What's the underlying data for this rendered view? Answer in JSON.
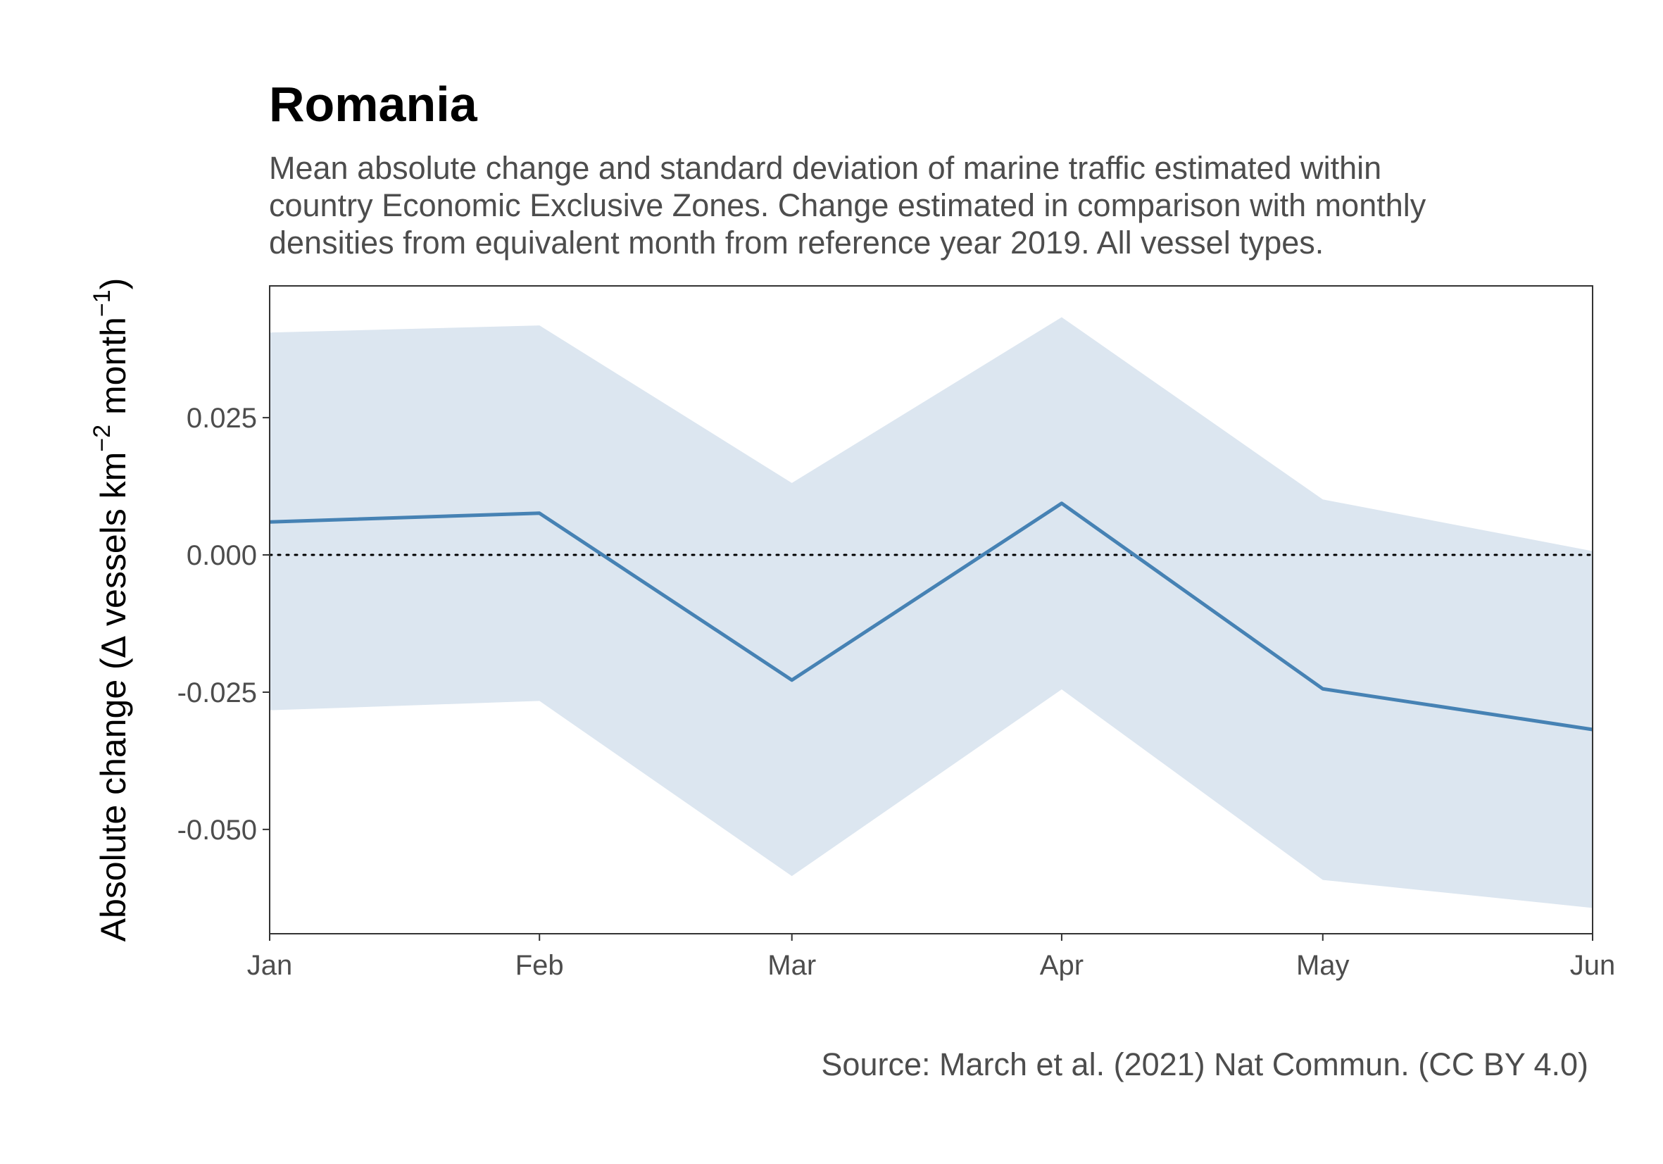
{
  "chart_data": {
    "type": "area",
    "title": "Romania",
    "subtitle": [
      "Mean absolute change and standard deviation of marine traffic estimated within",
      "country Economic Exclusive Zones. Change estimated in comparison with monthly",
      "densities from equivalent month from reference year 2019. All vessel types."
    ],
    "caption": "Source: March et al. (2021) Nat Commun. (CC BY 4.0)",
    "ylabel": {
      "prefix": "Absolute change (",
      "delta": "Δ",
      "text1": " vessels km",
      "sup1": "−2",
      "text2": " month",
      "sup2": "−1",
      "suffix": ")"
    },
    "x": [
      "Jan",
      "Feb",
      "Mar",
      "Apr",
      "May",
      "Jun"
    ],
    "x_days": [
      1,
      32,
      61,
      92,
      122,
      153
    ],
    "xlim_days": [
      1,
      153
    ],
    "ylim": [
      -0.069,
      0.049
    ],
    "yticks": [
      0.025,
      0.0,
      -0.025,
      -0.05
    ],
    "ytick_labels": [
      "0.025",
      "0.000",
      "-0.025",
      "-0.050"
    ],
    "series": [
      {
        "mean": [
          0.006,
          0.0076,
          -0.0228,
          0.0094,
          -0.0244,
          -0.0318
        ],
        "upper": [
          0.0405,
          0.0418,
          0.0131,
          0.0433,
          0.0101,
          0.0007
        ],
        "lower": [
          -0.0283,
          -0.0266,
          -0.0585,
          -0.0245,
          -0.0592,
          -0.0643
        ],
        "line_color": "#4682B4",
        "ribbon_color": "#DCE6F0"
      }
    ],
    "reference_line": {
      "y": 0,
      "style": "dotted",
      "color": "#000000"
    },
    "grid": false,
    "legend": "none"
  }
}
